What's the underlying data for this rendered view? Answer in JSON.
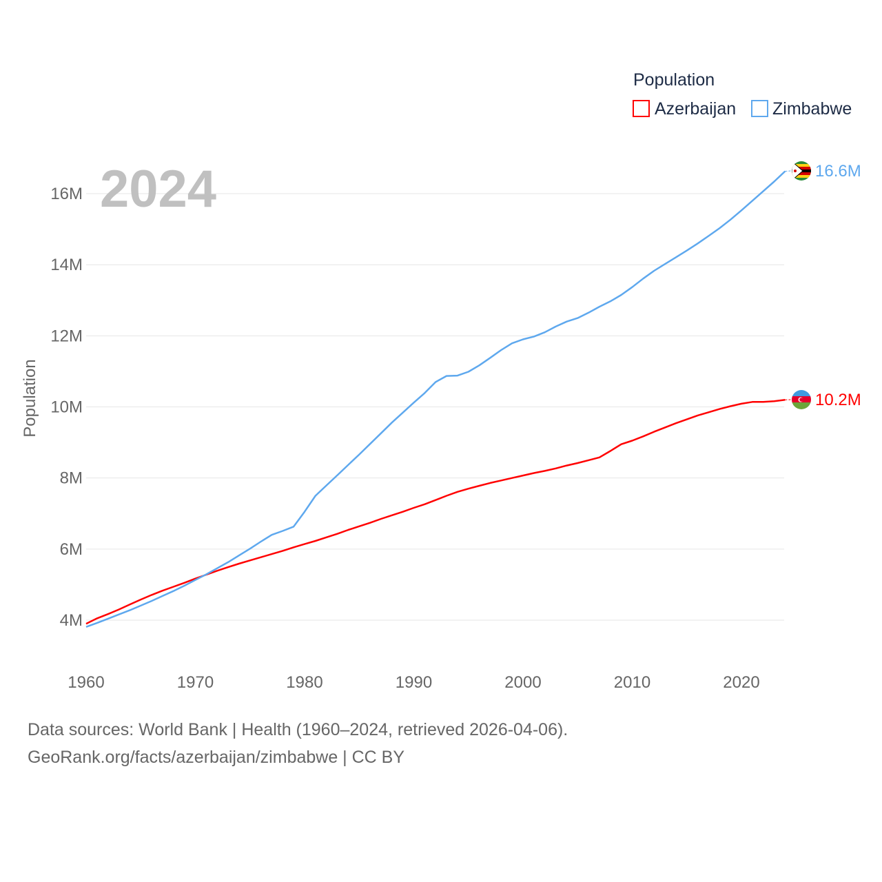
{
  "chart_data": {
    "type": "line",
    "title": "",
    "year_watermark": "2024",
    "ylabel": "Population",
    "xlabel": "",
    "legend_title": "Population",
    "legend_position": "top-right",
    "xlim": [
      1960,
      2024
    ],
    "ylim": [
      3.5,
      17
    ],
    "y_ticks": [
      4,
      6,
      8,
      10,
      12,
      14,
      16
    ],
    "y_tick_labels": [
      "4M",
      "6M",
      "8M",
      "10M",
      "12M",
      "14M",
      "16M"
    ],
    "x_ticks": [
      1960,
      1970,
      1980,
      1990,
      2000,
      2010,
      2020
    ],
    "x_tick_labels": [
      "1960",
      "1970",
      "1980",
      "1990",
      "2000",
      "2010",
      "2020"
    ],
    "grid": true,
    "x": [
      1960,
      1961,
      1962,
      1963,
      1964,
      1965,
      1966,
      1967,
      1968,
      1969,
      1970,
      1971,
      1972,
      1973,
      1974,
      1975,
      1976,
      1977,
      1978,
      1979,
      1980,
      1981,
      1982,
      1983,
      1984,
      1985,
      1986,
      1987,
      1988,
      1989,
      1990,
      1991,
      1992,
      1993,
      1994,
      1995,
      1996,
      1997,
      1998,
      1999,
      2000,
      2001,
      2002,
      2003,
      2004,
      2005,
      2006,
      2007,
      2008,
      2009,
      2010,
      2011,
      2012,
      2013,
      2014,
      2015,
      2016,
      2017,
      2018,
      2019,
      2020,
      2021,
      2022,
      2023,
      2024
    ],
    "units": "millions",
    "series": [
      {
        "name": "Azerbaijan",
        "color": "#ff0000",
        "end_label": "10.2M",
        "values": [
          3.9,
          4.05,
          4.17,
          4.3,
          4.44,
          4.58,
          4.71,
          4.83,
          4.94,
          5.05,
          5.17,
          5.28,
          5.39,
          5.49,
          5.59,
          5.68,
          5.77,
          5.86,
          5.95,
          6.05,
          6.14,
          6.23,
          6.33,
          6.43,
          6.54,
          6.64,
          6.74,
          6.85,
          6.95,
          7.05,
          7.16,
          7.26,
          7.38,
          7.5,
          7.61,
          7.7,
          7.78,
          7.86,
          7.93,
          8.0,
          8.07,
          8.14,
          8.2,
          8.27,
          8.35,
          8.42,
          8.5,
          8.58,
          8.76,
          8.95,
          9.05,
          9.17,
          9.3,
          9.42,
          9.54,
          9.65,
          9.76,
          9.85,
          9.94,
          10.02,
          10.09,
          10.14,
          10.14,
          10.16,
          10.2
        ]
      },
      {
        "name": "Zimbabwe",
        "color": "#5ea8ee",
        "end_label": "16.6M",
        "values": [
          3.81,
          3.92,
          4.04,
          4.16,
          4.28,
          4.41,
          4.54,
          4.68,
          4.82,
          4.97,
          5.13,
          5.29,
          5.46,
          5.63,
          5.82,
          6.01,
          6.21,
          6.4,
          6.51,
          6.63,
          7.05,
          7.5,
          7.79,
          8.08,
          8.37,
          8.66,
          8.96,
          9.26,
          9.56,
          9.84,
          10.12,
          10.39,
          10.7,
          10.87,
          10.88,
          10.99,
          11.17,
          11.38,
          11.6,
          11.79,
          11.9,
          11.98,
          12.1,
          12.26,
          12.4,
          12.5,
          12.65,
          12.82,
          12.97,
          13.15,
          13.37,
          13.61,
          13.83,
          14.02,
          14.21,
          14.4,
          14.6,
          14.81,
          15.03,
          15.27,
          15.53,
          15.8,
          16.07,
          16.34,
          16.63
        ]
      }
    ]
  },
  "footer": {
    "line1": "Data sources: World Bank | Health (1960–2024, retrieved 2026-04-06).",
    "line2": "GeoRank.org/facts/azerbaijan/zimbabwe | CC BY"
  }
}
